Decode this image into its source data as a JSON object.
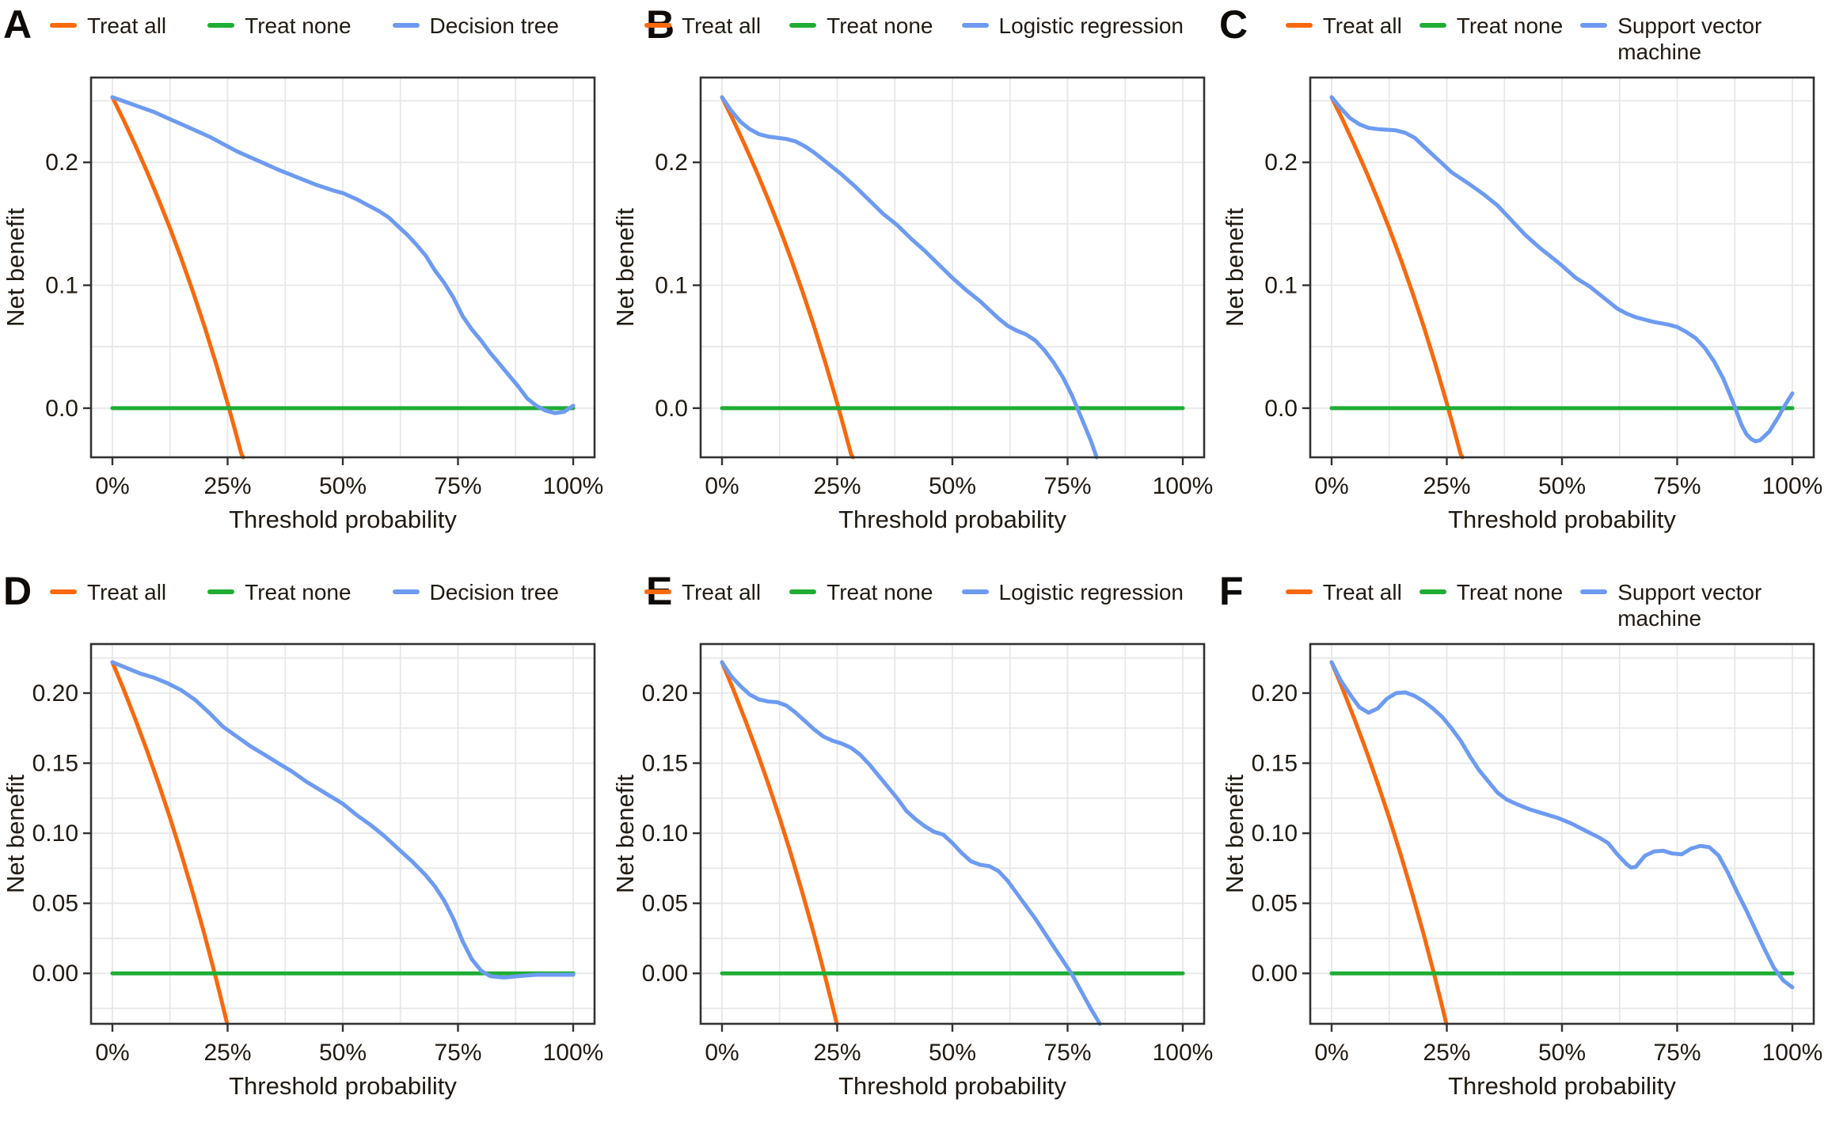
{
  "chart_data": {
    "type": "line",
    "x_label": "Threshold probability",
    "y_label": "Net benefit",
    "x_ticks": {
      "values": [
        0,
        25,
        50,
        75,
        100
      ],
      "labels": [
        "0%",
        "25%",
        "50%",
        "75%",
        "100%"
      ]
    },
    "x_grid_step": 12.5,
    "grid": true,
    "legend_position": "top",
    "colors": {
      "treat_all": "#F8690D",
      "treat_none": "#1FAD34",
      "model": "#6D9BF1",
      "grid": "#E7E7E7",
      "frame": "#333333",
      "tick": "#333333",
      "text": "#211A12"
    },
    "legend_labels": {
      "treat_all": "Treat all",
      "treat_none": "Treat none"
    },
    "treat_none": [
      [
        0,
        0
      ],
      [
        100,
        0
      ]
    ],
    "rows": [
      {
        "ylim": [
          -0.04,
          0.269
        ],
        "y_tick_values": [
          0.0,
          0.1,
          0.2
        ],
        "y_tick_labels": [
          "0.0",
          "0.1",
          "0.2"
        ],
        "y_grid_step": 0.05,
        "treat_all": [
          [
            0,
            0.253
          ],
          [
            2.5,
            0.2338
          ],
          [
            5,
            0.2137
          ],
          [
            7.5,
            0.1924
          ],
          [
            10,
            0.17
          ],
          [
            12.5,
            0.1463
          ],
          [
            15,
            0.1212
          ],
          [
            17.5,
            0.0946
          ],
          [
            20,
            0.0663
          ],
          [
            22.5,
            0.0362
          ],
          [
            25,
            0.004
          ],
          [
            26.5,
            -0.0163
          ],
          [
            28,
            -0.0375
          ],
          [
            28.4,
            -0.04
          ]
        ]
      },
      {
        "ylim": [
          -0.036,
          0.235
        ],
        "y_tick_values": [
          0.0,
          0.05,
          0.1,
          0.15,
          0.2
        ],
        "y_tick_labels": [
          "0.00",
          "0.05",
          "0.10",
          "0.15",
          "0.20"
        ],
        "y_grid_step": 0.025,
        "treat_all": [
          [
            0,
            0.222
          ],
          [
            2.5,
            0.2021
          ],
          [
            5,
            0.1811
          ],
          [
            7.5,
            0.1589
          ],
          [
            10,
            0.1356
          ],
          [
            12.5,
            0.1109
          ],
          [
            15,
            0.0847
          ],
          [
            17.5,
            0.057
          ],
          [
            20,
            0.0275
          ],
          [
            22.2,
            0.0
          ],
          [
            23.5,
            -0.0171
          ],
          [
            24.9,
            -0.0358
          ]
        ]
      }
    ],
    "panels": [
      {
        "id": "A",
        "row": 0,
        "model_label": "Decision tree",
        "model": [
          [
            0,
            0.253
          ],
          [
            3,
            0.249
          ],
          [
            6,
            0.245
          ],
          [
            9,
            0.241
          ],
          [
            12,
            0.236
          ],
          [
            15,
            0.231
          ],
          [
            18,
            0.226
          ],
          [
            21,
            0.221
          ],
          [
            24,
            0.215
          ],
          [
            27,
            0.209
          ],
          [
            30,
            0.204
          ],
          [
            33,
            0.199
          ],
          [
            36,
            0.194
          ],
          [
            40,
            0.188
          ],
          [
            44,
            0.182
          ],
          [
            48,
            0.177
          ],
          [
            50,
            0.175
          ],
          [
            53,
            0.17
          ],
          [
            56,
            0.164
          ],
          [
            58,
            0.16
          ],
          [
            60,
            0.155
          ],
          [
            62,
            0.148
          ],
          [
            64,
            0.141
          ],
          [
            66,
            0.133
          ],
          [
            68,
            0.124
          ],
          [
            70,
            0.112
          ],
          [
            72,
            0.102
          ],
          [
            74,
            0.09
          ],
          [
            76,
            0.075
          ],
          [
            78,
            0.064
          ],
          [
            80,
            0.055
          ],
          [
            82,
            0.045
          ],
          [
            84,
            0.036
          ],
          [
            86,
            0.027
          ],
          [
            88,
            0.018
          ],
          [
            90,
            0.008
          ],
          [
            92,
            0.002
          ],
          [
            94,
            -0.002
          ],
          [
            96,
            -0.004
          ],
          [
            98,
            -0.003
          ],
          [
            100,
            0.002
          ]
        ]
      },
      {
        "id": "B",
        "row": 0,
        "model_label": "Logistic regression",
        "model": [
          [
            0,
            0.253
          ],
          [
            2,
            0.242
          ],
          [
            4,
            0.233
          ],
          [
            6,
            0.227
          ],
          [
            8,
            0.223
          ],
          [
            10,
            0.221
          ],
          [
            12,
            0.22
          ],
          [
            14,
            0.219
          ],
          [
            16,
            0.217
          ],
          [
            18,
            0.213
          ],
          [
            20,
            0.208
          ],
          [
            23,
            0.199
          ],
          [
            26,
            0.19
          ],
          [
            29,
            0.18
          ],
          [
            32,
            0.169
          ],
          [
            35,
            0.158
          ],
          [
            38,
            0.149
          ],
          [
            41,
            0.138
          ],
          [
            44,
            0.128
          ],
          [
            47,
            0.117
          ],
          [
            50,
            0.106
          ],
          [
            53,
            0.096
          ],
          [
            56,
            0.087
          ],
          [
            58,
            0.08
          ],
          [
            60,
            0.073
          ],
          [
            62,
            0.067
          ],
          [
            64,
            0.063
          ],
          [
            66,
            0.06
          ],
          [
            68,
            0.055
          ],
          [
            70,
            0.047
          ],
          [
            72,
            0.037
          ],
          [
            74,
            0.025
          ],
          [
            76,
            0.01
          ],
          [
            78,
            -0.008
          ],
          [
            80,
            -0.026
          ],
          [
            81.3,
            -0.04
          ]
        ]
      },
      {
        "id": "C",
        "row": 0,
        "model_label": "Support vector\nmachine",
        "model": [
          [
            0,
            0.253
          ],
          [
            2,
            0.244
          ],
          [
            4,
            0.236
          ],
          [
            6,
            0.231
          ],
          [
            8,
            0.228
          ],
          [
            10,
            0.227
          ],
          [
            12,
            0.2265
          ],
          [
            14,
            0.226
          ],
          [
            16,
            0.224
          ],
          [
            18,
            0.22
          ],
          [
            20,
            0.213
          ],
          [
            22,
            0.206
          ],
          [
            24,
            0.199
          ],
          [
            26,
            0.192
          ],
          [
            28,
            0.187
          ],
          [
            30,
            0.182
          ],
          [
            33,
            0.174
          ],
          [
            36,
            0.165
          ],
          [
            39,
            0.153
          ],
          [
            42,
            0.141
          ],
          [
            45,
            0.131
          ],
          [
            48,
            0.122
          ],
          [
            50,
            0.116
          ],
          [
            53,
            0.106
          ],
          [
            56,
            0.099
          ],
          [
            59,
            0.09
          ],
          [
            62,
            0.081
          ],
          [
            64,
            0.077
          ],
          [
            66,
            0.074
          ],
          [
            68,
            0.072
          ],
          [
            70,
            0.07
          ],
          [
            73,
            0.068
          ],
          [
            75,
            0.066
          ],
          [
            77,
            0.062
          ],
          [
            79,
            0.057
          ],
          [
            81,
            0.049
          ],
          [
            83,
            0.038
          ],
          [
            85,
            0.024
          ],
          [
            87,
            0.006
          ],
          [
            89,
            -0.014
          ],
          [
            90,
            -0.021
          ],
          [
            91,
            -0.025
          ],
          [
            92,
            -0.027
          ],
          [
            93,
            -0.026
          ],
          [
            95,
            -0.019
          ],
          [
            97,
            -0.007
          ],
          [
            98,
            0.0
          ],
          [
            99,
            0.006
          ],
          [
            100,
            0.012
          ]
        ]
      },
      {
        "id": "D",
        "row": 1,
        "model_label": "Decision tree",
        "model": [
          [
            0,
            0.222
          ],
          [
            3,
            0.218
          ],
          [
            6,
            0.214
          ],
          [
            9,
            0.211
          ],
          [
            12,
            0.207
          ],
          [
            15,
            0.202
          ],
          [
            18,
            0.195
          ],
          [
            21,
            0.186
          ],
          [
            24,
            0.176
          ],
          [
            27,
            0.169
          ],
          [
            30,
            0.162
          ],
          [
            33,
            0.156
          ],
          [
            36,
            0.15
          ],
          [
            39,
            0.144
          ],
          [
            42,
            0.137
          ],
          [
            45,
            0.131
          ],
          [
            48,
            0.125
          ],
          [
            50,
            0.121
          ],
          [
            53,
            0.113
          ],
          [
            56,
            0.106
          ],
          [
            59,
            0.098
          ],
          [
            62,
            0.089
          ],
          [
            65,
            0.08
          ],
          [
            68,
            0.07
          ],
          [
            70,
            0.062
          ],
          [
            72,
            0.052
          ],
          [
            74,
            0.039
          ],
          [
            76,
            0.023
          ],
          [
            78,
            0.01
          ],
          [
            80,
            0.002
          ],
          [
            82,
            -0.002
          ],
          [
            85,
            -0.003
          ],
          [
            88,
            -0.002
          ],
          [
            92,
            -0.001
          ],
          [
            100,
            -0.001
          ]
        ]
      },
      {
        "id": "E",
        "row": 1,
        "model_label": "Logistic regression",
        "model": [
          [
            0,
            0.222
          ],
          [
            2,
            0.212
          ],
          [
            4,
            0.205
          ],
          [
            6,
            0.199
          ],
          [
            8,
            0.1955
          ],
          [
            10,
            0.194
          ],
          [
            12,
            0.1935
          ],
          [
            14,
            0.191
          ],
          [
            16,
            0.186
          ],
          [
            18,
            0.18
          ],
          [
            20,
            0.174
          ],
          [
            22,
            0.169
          ],
          [
            24,
            0.166
          ],
          [
            26,
            0.164
          ],
          [
            28,
            0.161
          ],
          [
            30,
            0.156
          ],
          [
            32,
            0.149
          ],
          [
            34,
            0.141
          ],
          [
            36,
            0.133
          ],
          [
            38,
            0.125
          ],
          [
            40,
            0.116
          ],
          [
            42,
            0.11
          ],
          [
            44,
            0.105
          ],
          [
            46,
            0.101
          ],
          [
            48,
            0.099
          ],
          [
            50,
            0.093
          ],
          [
            52,
            0.086
          ],
          [
            54,
            0.08
          ],
          [
            56,
            0.0775
          ],
          [
            58,
            0.0765
          ],
          [
            60,
            0.073
          ],
          [
            62,
            0.066
          ],
          [
            64,
            0.057
          ],
          [
            66,
            0.048
          ],
          [
            68,
            0.039
          ],
          [
            70,
            0.029
          ],
          [
            72,
            0.019
          ],
          [
            74,
            0.009
          ],
          [
            76,
            -0.001
          ],
          [
            78,
            -0.013
          ],
          [
            80,
            -0.025
          ],
          [
            82,
            -0.036
          ]
        ]
      },
      {
        "id": "F",
        "row": 1,
        "model_label": "Support vector\nmachine",
        "model": [
          [
            0,
            0.222
          ],
          [
            2,
            0.209
          ],
          [
            4,
            0.199
          ],
          [
            6,
            0.19
          ],
          [
            8,
            0.186
          ],
          [
            10,
            0.189
          ],
          [
            12,
            0.196
          ],
          [
            14,
            0.2
          ],
          [
            16,
            0.2005
          ],
          [
            18,
            0.198
          ],
          [
            20,
            0.194
          ],
          [
            22,
            0.189
          ],
          [
            24,
            0.183
          ],
          [
            26,
            0.175
          ],
          [
            28,
            0.166
          ],
          [
            30,
            0.155
          ],
          [
            32,
            0.145
          ],
          [
            34,
            0.137
          ],
          [
            36,
            0.129
          ],
          [
            38,
            0.124
          ],
          [
            40,
            0.121
          ],
          [
            43,
            0.117
          ],
          [
            46,
            0.114
          ],
          [
            49,
            0.111
          ],
          [
            52,
            0.107
          ],
          [
            55,
            0.102
          ],
          [
            58,
            0.097
          ],
          [
            60,
            0.093
          ],
          [
            62,
            0.085
          ],
          [
            64,
            0.078
          ],
          [
            65,
            0.0755
          ],
          [
            66,
            0.076
          ],
          [
            68,
            0.084
          ],
          [
            70,
            0.087
          ],
          [
            72,
            0.0875
          ],
          [
            74,
            0.0855
          ],
          [
            76,
            0.085
          ],
          [
            78,
            0.089
          ],
          [
            80,
            0.091
          ],
          [
            82,
            0.09
          ],
          [
            84,
            0.084
          ],
          [
            86,
            0.072
          ],
          [
            88,
            0.058
          ],
          [
            90,
            0.045
          ],
          [
            92,
            0.031
          ],
          [
            94,
            0.017
          ],
          [
            96,
            0.004
          ],
          [
            98,
            -0.005
          ],
          [
            100,
            -0.01
          ]
        ]
      }
    ]
  }
}
